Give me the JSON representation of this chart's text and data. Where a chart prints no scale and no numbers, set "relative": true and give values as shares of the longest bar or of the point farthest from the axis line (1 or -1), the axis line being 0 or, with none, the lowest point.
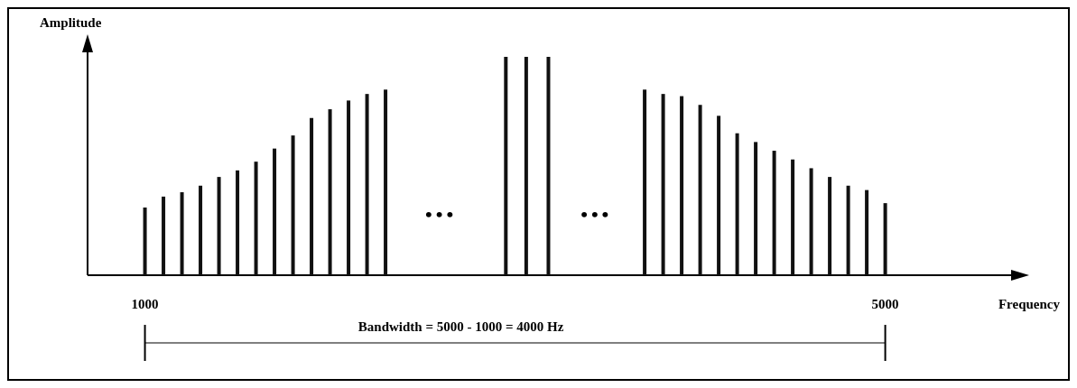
{
  "chart_data": {
    "type": "bar",
    "relative": true,
    "xlabel": "Frequency",
    "ylabel": "Amplitude",
    "color": "#111111",
    "x": [
      1000,
      1100,
      1200,
      1300,
      1400,
      1500,
      1600,
      1700,
      1800,
      1900,
      2000,
      2100,
      2200,
      2300,
      2950,
      3060,
      3180,
      3700,
      3800,
      3900,
      4000,
      4100,
      4200,
      4300,
      4400,
      4500,
      4600,
      4700,
      4800,
      4900,
      5000
    ],
    "values": [
      0.31,
      0.36,
      0.38,
      0.41,
      0.45,
      0.48,
      0.52,
      0.58,
      0.64,
      0.72,
      0.76,
      0.8,
      0.83,
      0.85,
      1,
      1,
      1,
      0.85,
      0.83,
      0.82,
      0.78,
      0.73,
      0.65,
      0.61,
      0.57,
      0.53,
      0.49,
      0.45,
      0.41,
      0.39,
      0.33
    ],
    "xlim": [
      690,
      5680
    ],
    "xticks": [
      1000,
      5000
    ],
    "annotations": [
      "•••",
      "•••",
      "Bandwidth = 5000 -  1000 = 4000 Hz"
    ]
  }
}
